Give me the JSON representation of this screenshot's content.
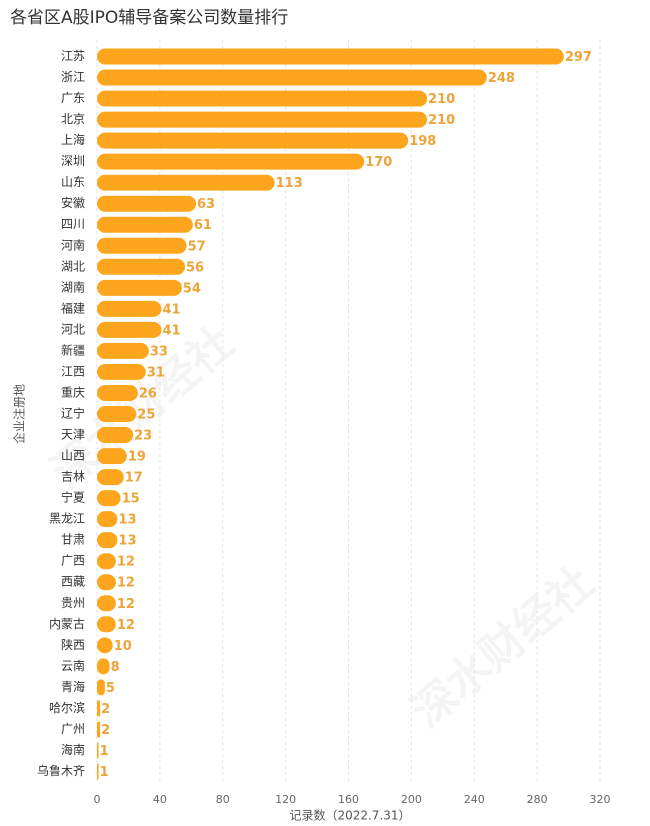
{
  "chart_data": {
    "type": "barh",
    "title": "各省区A股IPO辅导备案公司数量排行",
    "categories": [
      "江苏",
      "浙江",
      "广东",
      "北京",
      "上海",
      "深圳",
      "山东",
      "安徽",
      "四川",
      "河南",
      "湖北",
      "湖南",
      "福建",
      "河北",
      "新疆",
      "江西",
      "重庆",
      "辽宁",
      "天津",
      "山西",
      "吉林",
      "宁夏",
      "黑龙江",
      "甘肃",
      "广西",
      "西藏",
      "贵州",
      "内蒙古",
      "陕西",
      "云南",
      "青海",
      "哈尔滨",
      "广州",
      "海南",
      "乌鲁木齐"
    ],
    "values": [
      297,
      248,
      210,
      210,
      198,
      170,
      113,
      63,
      61,
      57,
      56,
      54,
      41,
      41,
      33,
      31,
      26,
      25,
      23,
      19,
      17,
      15,
      13,
      13,
      12,
      12,
      12,
      12,
      10,
      8,
      5,
      2,
      2,
      1,
      1
    ],
    "color": "#fda51c",
    "label_color": "#eda43a",
    "xlim": [
      0,
      320
    ],
    "xticks": [
      0,
      40,
      80,
      120,
      160,
      200,
      240,
      280,
      320
    ],
    "grid": true,
    "xlabel": "记录数（2022.7.31）",
    "ylabel": "企业注册地",
    "watermark": "深水财经社"
  }
}
